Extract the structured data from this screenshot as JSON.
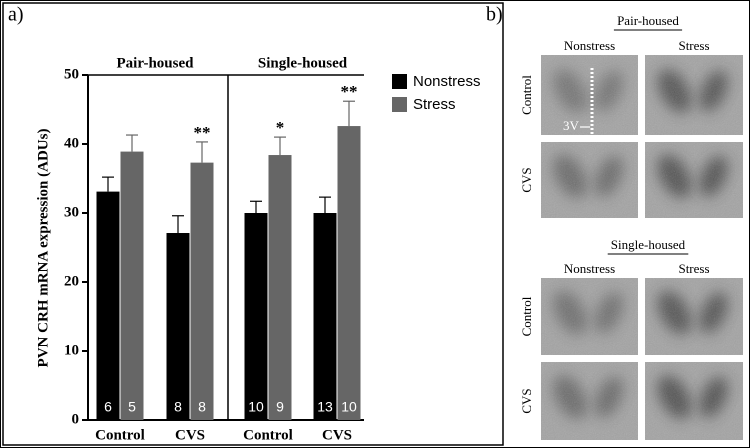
{
  "chart_data": {
    "type": "bar",
    "panel_label": "a)",
    "ylabel": "PVN CRH mRNA expression (ADUs)",
    "groups": [
      "Pair-housed",
      "Single-housed"
    ],
    "categories": [
      "Control",
      "CVS",
      "Control",
      "CVS"
    ],
    "series": [
      {
        "name": "Nonstress",
        "color": "#000000",
        "values": [
          33.1,
          27.1,
          30.0,
          30.0
        ],
        "errors": [
          2.1,
          2.5,
          1.7,
          2.3
        ],
        "n": [
          6,
          8,
          10,
          13
        ],
        "significance": [
          null,
          null,
          null,
          null
        ]
      },
      {
        "name": "Stress",
        "color": "#666666",
        "values": [
          38.9,
          37.3,
          38.4,
          42.6
        ],
        "errors": [
          2.4,
          3.0,
          2.6,
          3.6
        ],
        "n": [
          5,
          8,
          9,
          10
        ],
        "significance": [
          null,
          "**",
          "*",
          "**"
        ]
      }
    ],
    "ylim": [
      0,
      50
    ],
    "yticks": [
      0,
      10,
      20,
      30,
      40,
      50
    ],
    "grid": false,
    "legend": "right"
  },
  "panel_b": {
    "label": "b)",
    "sections": [
      {
        "title": "Pair-housed",
        "columns": [
          "Nonstress",
          "Stress"
        ],
        "rows": [
          "Control",
          "CVS"
        ],
        "marker": "3V"
      },
      {
        "title": "Single-housed",
        "columns": [
          "Nonstress",
          "Stress"
        ],
        "rows": [
          "Control",
          "CVS"
        ]
      }
    ]
  }
}
